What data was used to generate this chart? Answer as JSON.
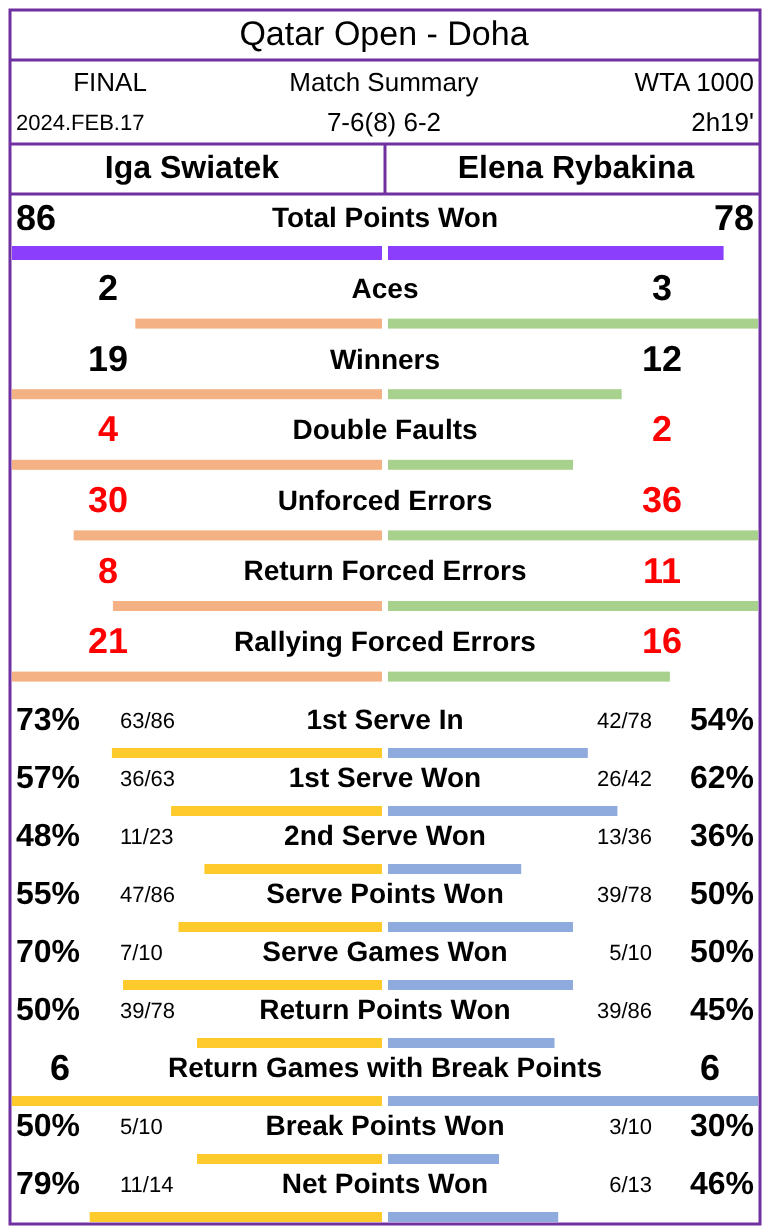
{
  "chart_data": {
    "type": "other",
    "title": "Qatar Open - Doha",
    "annotations": [
      "FINAL",
      "Match Summary",
      "WTA 1000",
      "2024.FEB.17",
      "7-6(8) 6-2",
      "2h19'",
      {
        "text": "63/86",
        "y": "1st Serve In"
      },
      {
        "text": "42/78",
        "y": "1st Serve In"
      },
      {
        "text": "36/63",
        "y": "1st Serve Won"
      },
      {
        "text": "26/42",
        "y": "1st Serve Won"
      },
      {
        "text": "11/23",
        "y": "2nd Serve Won"
      },
      {
        "text": "13/36",
        "y": "2nd Serve Won"
      },
      {
        "text": "47/86",
        "y": "Serve Points Won"
      },
      {
        "text": "39/78",
        "y": "Serve Points Won"
      },
      {
        "text": "7/10",
        "y": "Serve Games Won"
      },
      {
        "text": "5/10",
        "y": "Serve Games Won"
      },
      {
        "text": "39/78",
        "y": "Return Points Won"
      },
      {
        "text": "39/86",
        "y": "Return Points Won"
      },
      {
        "text": "5/10",
        "y": "Break Points Won"
      },
      {
        "text": "3/10",
        "y": "Break Points Won"
      },
      {
        "text": "11/14",
        "y": "Net Points Won"
      },
      {
        "text": "6/13",
        "y": "Net Points Won"
      }
    ],
    "categories": [
      "Total Points Won",
      "Aces",
      "Winners",
      "Double Faults",
      "Unforced Errors",
      "Return Forced Errors",
      "Rallying Forced Errors",
      "1st Serve In",
      "1st Serve Won",
      "2nd Serve Won",
      "Serve Points Won",
      "Serve Games Won",
      "Return Points Won",
      "Return Games with Break Points",
      "Break Points Won",
      "Net Points Won"
    ],
    "series": [
      {
        "name": "Iga Swiatek",
        "values": [
          86,
          2,
          19,
          4,
          30,
          8,
          21,
          73,
          57,
          48,
          55,
          70,
          50,
          6,
          50,
          79
        ],
        "value_labels": [
          "86",
          "2",
          "19",
          "4",
          "30",
          "8",
          "21",
          "73%",
          "57%",
          "48%",
          "55%",
          "70%",
          "50%",
          "6",
          "50%",
          "79%"
        ],
        "colors": [
          "#8b3ffc",
          "#f4b183",
          "#f4b183",
          "#f4b183",
          "#f4b183",
          "#f4b183",
          "#f4b183",
          "#ffca2c",
          "#ffca2c",
          "#ffca2c",
          "#ffca2c",
          "#ffca2c",
          "#ffca2c",
          "#ffca2c",
          "#ffca2c",
          "#ffca2c"
        ]
      },
      {
        "name": "Elena Rybakina",
        "values": [
          78,
          3,
          12,
          2,
          36,
          11,
          16,
          54,
          62,
          36,
          50,
          50,
          45,
          6,
          30,
          46
        ],
        "value_labels": [
          "78",
          "3",
          "12",
          "2",
          "36",
          "11",
          "16",
          "54%",
          "62%",
          "36%",
          "50%",
          "50%",
          "45%",
          "6",
          "30%",
          "46%"
        ],
        "colors": [
          "#8b3ffc",
          "#a9d18e",
          "#a9d18e",
          "#a9d18e",
          "#a9d18e",
          "#a9d18e",
          "#a9d18e",
          "#8faadc",
          "#8faadc",
          "#8faadc",
          "#8faadc",
          "#8faadc",
          "#8faadc",
          "#8faadc",
          "#8faadc",
          "#8faadc"
        ]
      }
    ]
  }
}
